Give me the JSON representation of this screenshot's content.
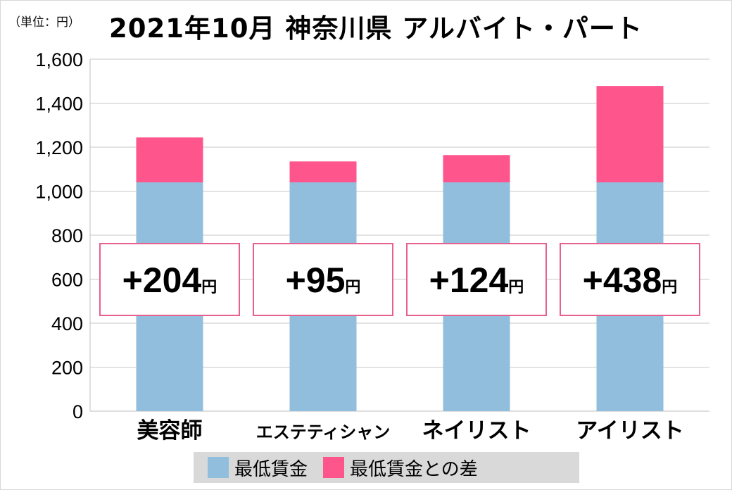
{
  "unit_label": "（単位：円）",
  "title": "2021年10月 神奈川県 アルバイト・パート",
  "colors": {
    "base": "#92bedd",
    "diff": "#fe558c",
    "box_border": "#e8608f",
    "grid": "#c8c8c8",
    "legend_bg": "#d9d9d9"
  },
  "chart_data": {
    "type": "bar",
    "stacked": true,
    "categories": [
      "美容師",
      "エステティシャン",
      "ネイリスト",
      "アイリスト"
    ],
    "series": [
      {
        "name": "最低賃金",
        "values": [
          1040,
          1040,
          1040,
          1040
        ]
      },
      {
        "name": "最低賃金との差",
        "values": [
          204,
          95,
          124,
          438
        ]
      }
    ],
    "annotations": [
      "+204",
      "+95",
      "+124",
      "+438"
    ],
    "annotation_unit": "円",
    "yticks": [
      0,
      200,
      400,
      600,
      800,
      1000,
      1200,
      1400,
      1600
    ],
    "ytick_labels": [
      "0",
      "200",
      "400",
      "600",
      "800",
      "1,000",
      "1,200",
      "1,400",
      "1,600"
    ],
    "ylim": [
      0,
      1600
    ],
    "grid": true,
    "legend_position": "bottom"
  }
}
